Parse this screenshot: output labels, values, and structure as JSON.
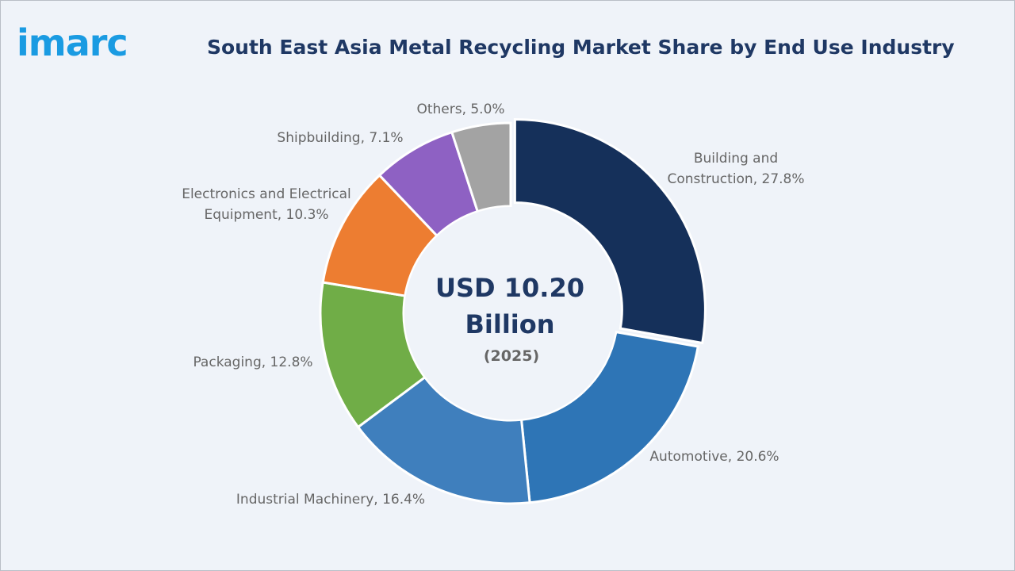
{
  "logo": "imarc",
  "chart_data": {
    "type": "donut",
    "title": "South East Asia Metal Recycling Market Share by End Use Industry",
    "center_text": "USD 10.20 Billion",
    "center_subtext": "(2025)",
    "values": [
      27.8,
      20.6,
      16.4,
      12.8,
      10.3,
      7.1,
      5.0
    ],
    "value_labels": [
      "Building and Construction, 27.8%",
      "Automotive, 20.6%",
      "Industrial Machinery, 16.4%",
      "Packaging, 12.8%",
      "Electronics and Electrical Equipment, 10.3%",
      "Shipbuilding, 7.1%",
      "Others, 5.0%"
    ],
    "colors": [
      "#15305a",
      "#2e75b6",
      "#3f7fbd",
      "#70ad47",
      "#ed7d31",
      "#8e61c3",
      "#a3a3a3"
    ]
  }
}
